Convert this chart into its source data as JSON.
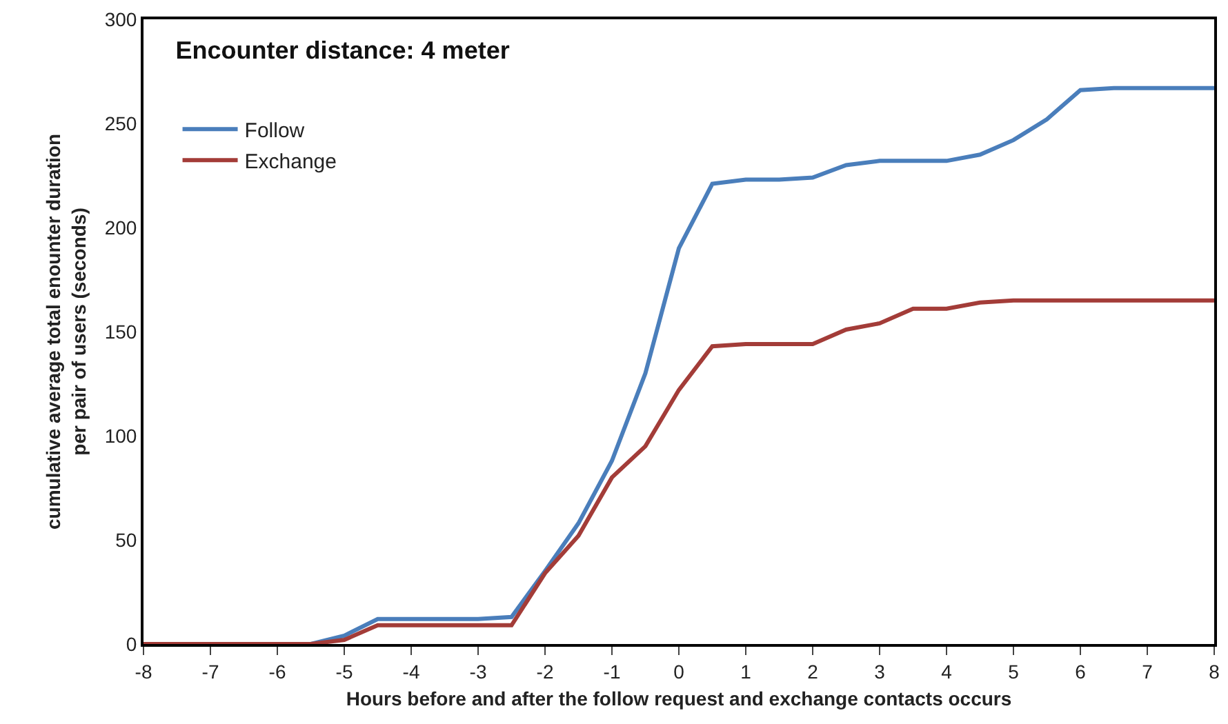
{
  "chart_data": {
    "type": "line",
    "title": "Encounter distance: 4 meter",
    "xlabel": "Hours before and after the follow request and exchange contacts occurs",
    "ylabel": "cumulative average total enounter duration\nper pair of users (seconds)",
    "x": [
      -8,
      -7.5,
      -7,
      -6.5,
      -6,
      -5.5,
      -5,
      -4.5,
      -4,
      -3.5,
      -3,
      -2.5,
      -2,
      -1.5,
      -1,
      -0.5,
      0,
      0.5,
      1,
      1.5,
      2,
      2.5,
      3,
      3.5,
      4,
      4.5,
      5,
      5.5,
      6,
      6.5,
      7,
      7.5,
      8
    ],
    "series": [
      {
        "name": "Follow",
        "color": "#4a7ebb",
        "values": [
          null,
          null,
          null,
          null,
          0,
          0,
          4,
          12,
          12,
          12,
          12,
          13,
          35,
          58,
          88,
          130,
          190,
          221,
          223,
          223,
          224,
          230,
          232,
          232,
          232,
          235,
          242,
          252,
          266,
          267,
          267,
          267,
          267
        ]
      },
      {
        "name": "Exchange",
        "color": "#a33c38",
        "values": [
          0,
          0,
          0,
          0,
          0,
          0,
          2,
          9,
          9,
          9,
          9,
          9,
          34,
          52,
          80,
          95,
          122,
          143,
          144,
          144,
          144,
          151,
          154,
          161,
          161,
          164,
          165,
          165,
          165,
          165,
          165,
          165,
          165
        ]
      }
    ],
    "xlim": [
      -8,
      8
    ],
    "xticks": [
      -8,
      -7,
      -6,
      -5,
      -4,
      -3,
      -2,
      -1,
      0,
      1,
      2,
      3,
      4,
      5,
      6,
      7,
      8
    ],
    "ylim": [
      0,
      300
    ],
    "yticks": [
      0,
      50,
      100,
      150,
      200,
      250,
      300
    ],
    "grid": false,
    "legend": "top left",
    "marker": "none",
    "line_style": "solid"
  }
}
